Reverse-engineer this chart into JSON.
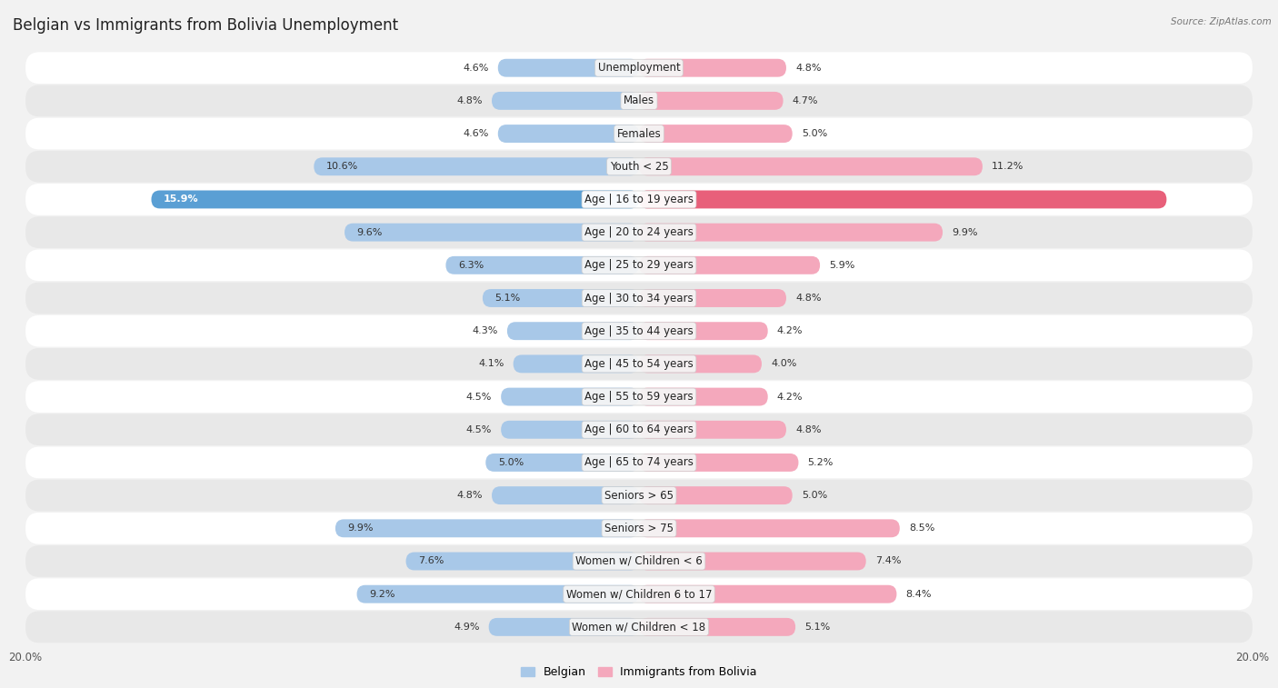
{
  "title": "Belgian vs Immigrants from Bolivia Unemployment",
  "source": "Source: ZipAtlas.com",
  "categories": [
    "Unemployment",
    "Males",
    "Females",
    "Youth < 25",
    "Age | 16 to 19 years",
    "Age | 20 to 24 years",
    "Age | 25 to 29 years",
    "Age | 30 to 34 years",
    "Age | 35 to 44 years",
    "Age | 45 to 54 years",
    "Age | 55 to 59 years",
    "Age | 60 to 64 years",
    "Age | 65 to 74 years",
    "Seniors > 65",
    "Seniors > 75",
    "Women w/ Children < 6",
    "Women w/ Children 6 to 17",
    "Women w/ Children < 18"
  ],
  "belgian": [
    4.6,
    4.8,
    4.6,
    10.6,
    15.9,
    9.6,
    6.3,
    5.1,
    4.3,
    4.1,
    4.5,
    4.5,
    5.0,
    4.8,
    9.9,
    7.6,
    9.2,
    4.9
  ],
  "bolivia": [
    4.8,
    4.7,
    5.0,
    11.2,
    17.2,
    9.9,
    5.9,
    4.8,
    4.2,
    4.0,
    4.2,
    4.8,
    5.2,
    5.0,
    8.5,
    7.4,
    8.4,
    5.1
  ],
  "belgian_color": "#a8c8e8",
  "bolivia_color": "#f4a8bc",
  "highlight_belgian_color": "#5a9fd4",
  "highlight_bolivia_color": "#e8607a",
  "background_color": "#f2f2f2",
  "row_color_light": "#ffffff",
  "row_color_dark": "#e8e8e8",
  "max_val": 20.0,
  "legend_belgian": "Belgian",
  "legend_bolivia": "Immigrants from Bolivia",
  "title_fontsize": 12,
  "label_fontsize": 8.5,
  "value_fontsize": 8.0,
  "axis_fontsize": 8.5,
  "highlight_idx": 4
}
